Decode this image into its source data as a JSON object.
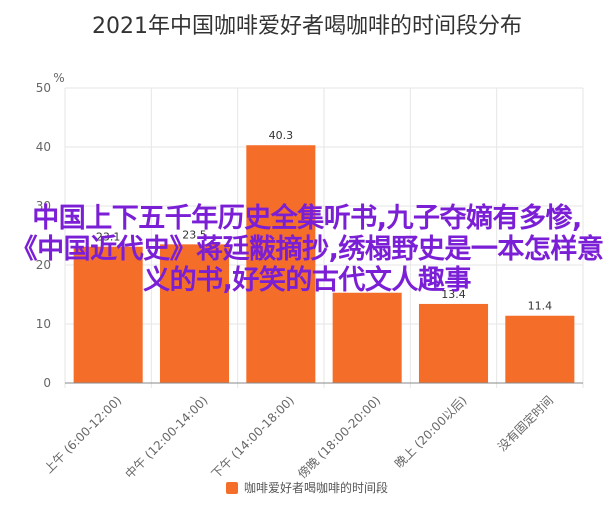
{
  "chart_data": {
    "type": "bar",
    "title": "2021年中国咖啡爱好者喝咖啡的时间段分布",
    "ylabel": "%",
    "ylim": [
      0,
      50
    ],
    "yticks": [
      0,
      10,
      20,
      30,
      40,
      50
    ],
    "categories": [
      "上午 (6:00-12:00)",
      "中午 (12:00-14:00)",
      "下午 (14:00-18:00)",
      "傍晚 (18:00-20:00)",
      "晚上 (20:00以后)",
      "没有固定时间"
    ],
    "series": [
      {
        "name": "咖啡爱好者喝咖啡的时间段",
        "values": [
          23.1,
          23.5,
          40.3,
          15.3,
          13.4,
          11.4
        ],
        "labels": [
          "23.1",
          "23.5",
          "40.3",
          "",
          "13.4",
          "11.4"
        ]
      }
    ],
    "legend_position": "bottom",
    "grid": true,
    "bar_color": "#f46e2a"
  },
  "overlay": {
    "caption": "中国上下五千年历史全集听书,九子夺嫡有多惨,《中国近代史》蒋廷黻摘抄,绣榻野史是一本怎样意义的书,好笑的古代文人趣事",
    "color": "#7b1fd6"
  }
}
